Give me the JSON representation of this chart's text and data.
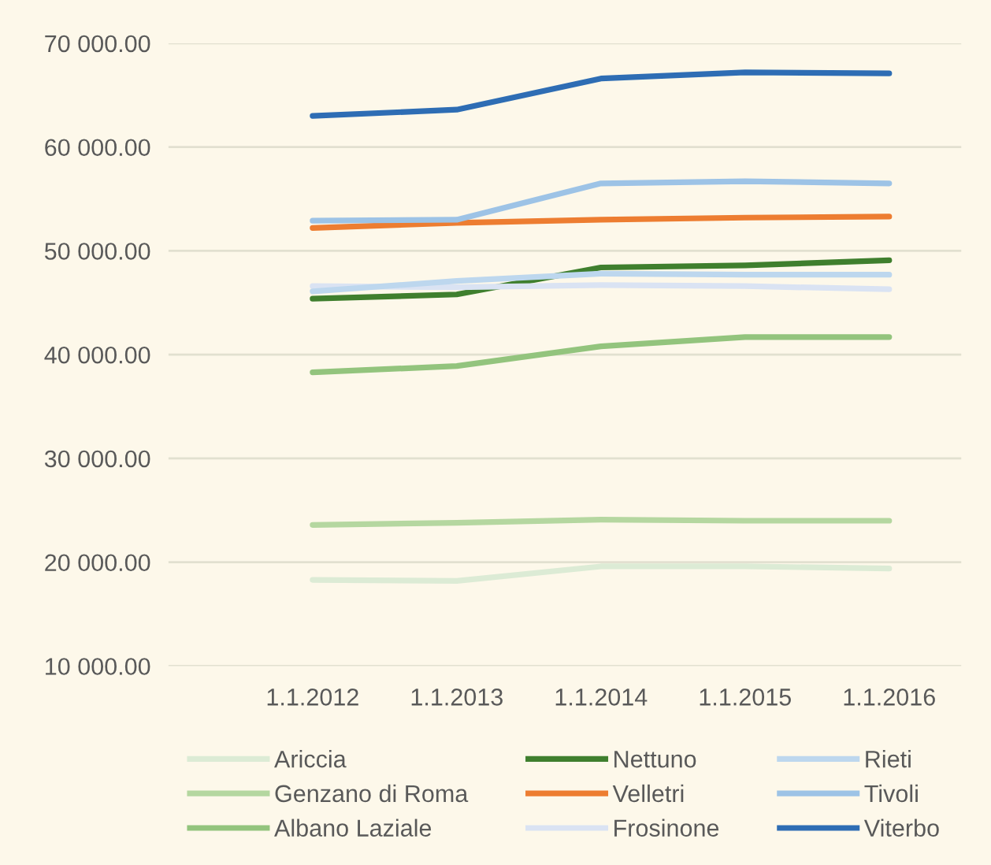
{
  "chart_data": {
    "type": "line",
    "categories": [
      "1.1.2012",
      "1.1.2013",
      "1.1.2014",
      "1.1.2015",
      "1.1.2016"
    ],
    "series": [
      {
        "name": "Ariccia",
        "color": "#dcebd5",
        "values": [
          18300,
          18200,
          19600,
          19600,
          19400
        ]
      },
      {
        "name": "Genzano di Roma",
        "color": "#b5d7a0",
        "values": [
          23600,
          23800,
          24100,
          24000,
          24000
        ]
      },
      {
        "name": "Albano Laziale",
        "color": "#93c47d",
        "values": [
          38300,
          38900,
          40800,
          41700,
          41700
        ]
      },
      {
        "name": "Nettuno",
        "color": "#3f7f2e",
        "values": [
          45400,
          45800,
          48400,
          48600,
          49100
        ]
      },
      {
        "name": "Velletri",
        "color": "#ed7d31",
        "values": [
          52200,
          52700,
          53000,
          53200,
          53300
        ]
      },
      {
        "name": "Frosinone",
        "color": "#dae3f3",
        "values": [
          46600,
          46500,
          46700,
          46600,
          46300
        ]
      },
      {
        "name": "Rieti",
        "color": "#bdd7ee",
        "values": [
          46100,
          47100,
          47800,
          47700,
          47700
        ]
      },
      {
        "name": "Tivoli",
        "color": "#9dc3e6",
        "values": [
          52900,
          53000,
          56500,
          56700,
          56500
        ]
      },
      {
        "name": "Viterbo",
        "color": "#2e6db4",
        "values": [
          63000,
          63600,
          66600,
          67200,
          67100
        ]
      }
    ],
    "ylim": [
      10000,
      70000
    ],
    "yticks": [
      {
        "value": 10000,
        "label": "10 000.00"
      },
      {
        "value": 20000,
        "label": "20 000.00"
      },
      {
        "value": 30000,
        "label": "30 000.00"
      },
      {
        "value": 40000,
        "label": "40 000.00"
      },
      {
        "value": 50000,
        "label": "50 000.00"
      },
      {
        "value": 60000,
        "label": "60 000.00"
      },
      {
        "value": 70000,
        "label": "70 000.00"
      }
    ],
    "grid": "y",
    "legend": "bottom",
    "marker": "none",
    "line_style": "solid"
  }
}
